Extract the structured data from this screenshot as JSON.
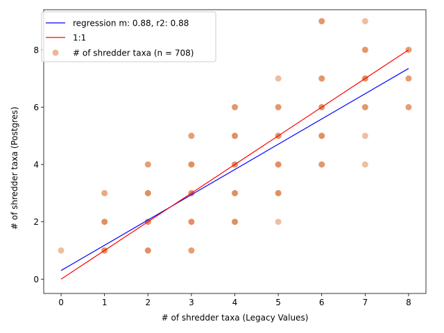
{
  "chart_data": {
    "type": "scatter",
    "xlabel": "# of shredder taxa (Legacy Values)",
    "ylabel": "# of shredder taxa (Postgres)",
    "xlim": [
      -0.4,
      8.4
    ],
    "ylim": [
      -0.5,
      9.4
    ],
    "xticks": [
      0,
      1,
      2,
      3,
      4,
      5,
      6,
      7,
      8
    ],
    "yticks": [
      0,
      2,
      4,
      6,
      8
    ],
    "grid": false,
    "legend_position": "top-left",
    "series": [
      {
        "name": "regression m: 0.88, r2: 0.88",
        "kind": "line",
        "color": "#0000ff",
        "x": [
          0,
          8
        ],
        "y": [
          0.3,
          7.35
        ]
      },
      {
        "name": "1:1",
        "kind": "line",
        "color": "#ff0000",
        "x": [
          0,
          8
        ],
        "y": [
          0,
          8
        ]
      },
      {
        "name": "# of shredder taxa (n = 708)",
        "kind": "scatter",
        "color": "#dd7d45",
        "points": [
          {
            "x": 0,
            "y": 1,
            "opacity": 0.5
          },
          {
            "x": 1,
            "y": 1,
            "opacity": 0.85
          },
          {
            "x": 1,
            "y": 2,
            "opacity": 0.85
          },
          {
            "x": 1,
            "y": 3,
            "opacity": 0.65
          },
          {
            "x": 2,
            "y": 1,
            "opacity": 0.85
          },
          {
            "x": 2,
            "y": 2,
            "opacity": 0.85
          },
          {
            "x": 2,
            "y": 3,
            "opacity": 0.85
          },
          {
            "x": 2,
            "y": 4,
            "opacity": 0.75
          },
          {
            "x": 3,
            "y": 1,
            "opacity": 0.75
          },
          {
            "x": 3,
            "y": 2,
            "opacity": 0.85
          },
          {
            "x": 3,
            "y": 3,
            "opacity": 0.85
          },
          {
            "x": 3,
            "y": 4,
            "opacity": 0.85
          },
          {
            "x": 3,
            "y": 5,
            "opacity": 0.75
          },
          {
            "x": 4,
            "y": 2,
            "opacity": 0.85
          },
          {
            "x": 4,
            "y": 3,
            "opacity": 0.85
          },
          {
            "x": 4,
            "y": 4,
            "opacity": 0.85
          },
          {
            "x": 4,
            "y": 5,
            "opacity": 0.85
          },
          {
            "x": 4,
            "y": 6,
            "opacity": 0.8
          },
          {
            "x": 5,
            "y": 2,
            "opacity": 0.5
          },
          {
            "x": 5,
            "y": 3,
            "opacity": 0.85
          },
          {
            "x": 5,
            "y": 4,
            "opacity": 0.85
          },
          {
            "x": 5,
            "y": 5,
            "opacity": 0.85
          },
          {
            "x": 5,
            "y": 6,
            "opacity": 0.8
          },
          {
            "x": 5,
            "y": 7,
            "opacity": 0.5
          },
          {
            "x": 6,
            "y": 4,
            "opacity": 0.8
          },
          {
            "x": 6,
            "y": 5,
            "opacity": 0.85
          },
          {
            "x": 6,
            "y": 6,
            "opacity": 0.85
          },
          {
            "x": 6,
            "y": 7,
            "opacity": 0.8
          },
          {
            "x": 6,
            "y": 9,
            "opacity": 0.8
          },
          {
            "x": 7,
            "y": 4,
            "opacity": 0.5
          },
          {
            "x": 7,
            "y": 5,
            "opacity": 0.5
          },
          {
            "x": 7,
            "y": 6,
            "opacity": 0.8
          },
          {
            "x": 7,
            "y": 7,
            "opacity": 0.85
          },
          {
            "x": 7,
            "y": 8,
            "opacity": 0.8
          },
          {
            "x": 7,
            "y": 9,
            "opacity": 0.5
          },
          {
            "x": 8,
            "y": 6,
            "opacity": 0.75
          },
          {
            "x": 8,
            "y": 7,
            "opacity": 0.75
          },
          {
            "x": 8,
            "y": 8,
            "opacity": 0.75
          }
        ]
      }
    ]
  }
}
